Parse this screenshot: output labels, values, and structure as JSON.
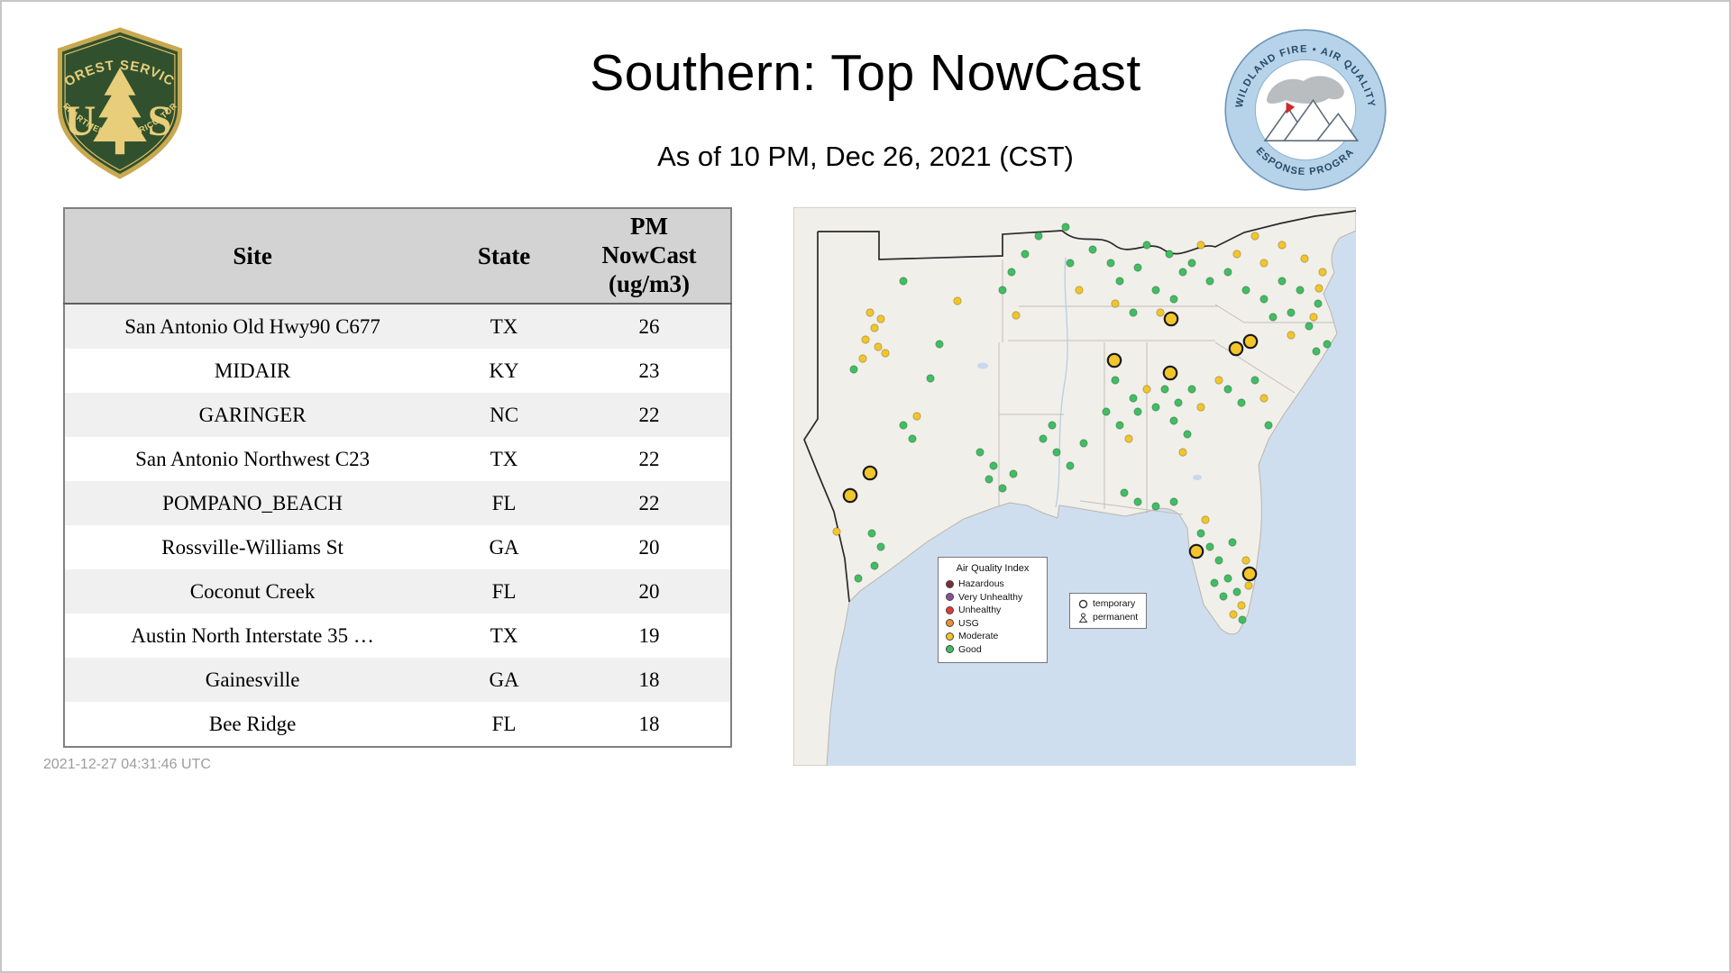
{
  "page": {
    "title": "Southern: Top NowCast",
    "subtitle": "As of 10 PM, Dec 26, 2021 (CST)",
    "timestamp": "2021-12-27 04:31:46 UTC"
  },
  "logos": {
    "forest_service": {
      "top_arc": "FOREST SERVICE",
      "letter_left": "U",
      "letter_right": "S",
      "bottom_arc": "DEPARTMENT OF AGRICULTURE"
    },
    "wfaqrp": {
      "top_arc": "WILDLAND FIRE • AIR QUALITY",
      "bottom_arc": "RESPONSE PROGRAM"
    }
  },
  "table": {
    "headers": [
      "Site",
      "State",
      "PM NowCast (ug/m3)"
    ],
    "rows": [
      [
        "San Antonio Old Hwy90 C677",
        "TX",
        "26"
      ],
      [
        "MIDAIR",
        "KY",
        "23"
      ],
      [
        "GARINGER",
        "NC",
        "22"
      ],
      [
        "San Antonio Northwest C23",
        "TX",
        "22"
      ],
      [
        "POMPANO_BEACH",
        "FL",
        "22"
      ],
      [
        "Rossville-Williams St",
        "GA",
        "20"
      ],
      [
        "Coconut Creek",
        "FL",
        "20"
      ],
      [
        "Austin North Interstate 35 …",
        "TX",
        "19"
      ],
      [
        "Gainesville",
        "GA",
        "18"
      ],
      [
        "Bee Ridge",
        "FL",
        "18"
      ]
    ]
  },
  "map": {
    "legend": {
      "title": "Air Quality Index",
      "items": [
        {
          "label": "Hazardous",
          "color": "#7e2c3c"
        },
        {
          "label": "Very Unhealthy",
          "color": "#8f4d9f"
        },
        {
          "label": "Unhealthy",
          "color": "#e03a3a"
        },
        {
          "label": "USG",
          "color": "#ef8d33"
        },
        {
          "label": "Moderate",
          "color": "#f2c52a"
        },
        {
          "label": "Good",
          "color": "#41bd63"
        }
      ]
    },
    "marker_legend": {
      "temporary": "temporary",
      "permanent": "permanent"
    },
    "colors": {
      "good": "#41bd63",
      "moderate": "#f2c52a"
    },
    "dots": {
      "moderate": [
        [
          85,
          117
        ],
        [
          97,
          124
        ],
        [
          90,
          134
        ],
        [
          80,
          147
        ],
        [
          94,
          155
        ],
        [
          102,
          162
        ],
        [
          77,
          168
        ],
        [
          48,
          360
        ],
        [
          137,
          232
        ],
        [
          182,
          104
        ],
        [
          247,
          120
        ],
        [
          317,
          92
        ],
        [
          357,
          107
        ],
        [
          407,
          117
        ],
        [
          452,
          42
        ],
        [
          492,
          52
        ],
        [
          522,
          62
        ],
        [
          512,
          32
        ],
        [
          542,
          42
        ],
        [
          567,
          57
        ],
        [
          587,
          72
        ],
        [
          583,
          90
        ],
        [
          392,
          202
        ],
        [
          452,
          222
        ],
        [
          432,
          272
        ],
        [
          472,
          192
        ],
        [
          522,
          212
        ],
        [
          552,
          142
        ],
        [
          577,
          122
        ],
        [
          457,
          347
        ],
        [
          502,
          392
        ],
        [
          505,
          420
        ],
        [
          497,
          442
        ],
        [
          488,
          452
        ],
        [
          372,
          257
        ]
      ],
      "good": [
        [
          67,
          180
        ],
        [
          162,
          152
        ],
        [
          152,
          190
        ],
        [
          207,
          272
        ],
        [
          222,
          287
        ],
        [
          217,
          302
        ],
        [
          232,
          312
        ],
        [
          244,
          296
        ],
        [
          122,
          242
        ],
        [
          132,
          257
        ],
        [
          87,
          362
        ],
        [
          97,
          377
        ],
        [
          72,
          412
        ],
        [
          90,
          398
        ],
        [
          277,
          257
        ],
        [
          292,
          272
        ],
        [
          307,
          287
        ],
        [
          322,
          262
        ],
        [
          287,
          242
        ],
        [
          347,
          227
        ],
        [
          362,
          242
        ],
        [
          377,
          212
        ],
        [
          357,
          192
        ],
        [
          382,
          227
        ],
        [
          242,
          72
        ],
        [
          257,
          52
        ],
        [
          232,
          92
        ],
        [
          272,
          32
        ],
        [
          302,
          22
        ],
        [
          122,
          82
        ],
        [
          362,
          82
        ],
        [
          382,
          67
        ],
        [
          402,
          92
        ],
        [
          422,
          102
        ],
        [
          377,
          117
        ],
        [
          352,
          62
        ],
        [
          432,
          72
        ],
        [
          392,
          42
        ],
        [
          417,
          52
        ],
        [
          442,
          62
        ],
        [
          462,
          82
        ],
        [
          482,
          72
        ],
        [
          307,
          62
        ],
        [
          332,
          47
        ],
        [
          502,
          92
        ],
        [
          522,
          102
        ],
        [
          542,
          82
        ],
        [
          562,
          92
        ],
        [
          532,
          122
        ],
        [
          552,
          117
        ],
        [
          572,
          132
        ],
        [
          582,
          107
        ],
        [
          592,
          152
        ],
        [
          580,
          160
        ],
        [
          412,
          202
        ],
        [
          427,
          217
        ],
        [
          442,
          202
        ],
        [
          402,
          222
        ],
        [
          422,
          237
        ],
        [
          437,
          252
        ],
        [
          482,
          202
        ],
        [
          497,
          217
        ],
        [
          512,
          192
        ],
        [
          527,
          242
        ],
        [
          367,
          317
        ],
        [
          382,
          327
        ],
        [
          402,
          332
        ],
        [
          422,
          327
        ],
        [
          452,
          362
        ],
        [
          462,
          377
        ],
        [
          472,
          392
        ],
        [
          482,
          412
        ],
        [
          492,
          427
        ],
        [
          477,
          432
        ],
        [
          467,
          417
        ],
        [
          487,
          372
        ],
        [
          498,
          458
        ]
      ]
    },
    "temporary_markers": [
      [
        419,
        124
      ],
      [
        356,
        170
      ],
      [
        418,
        184
      ],
      [
        491,
        157
      ],
      [
        507,
        149
      ],
      [
        85,
        295
      ],
      [
        63,
        320
      ],
      [
        447,
        382
      ],
      [
        506,
        407
      ]
    ]
  }
}
